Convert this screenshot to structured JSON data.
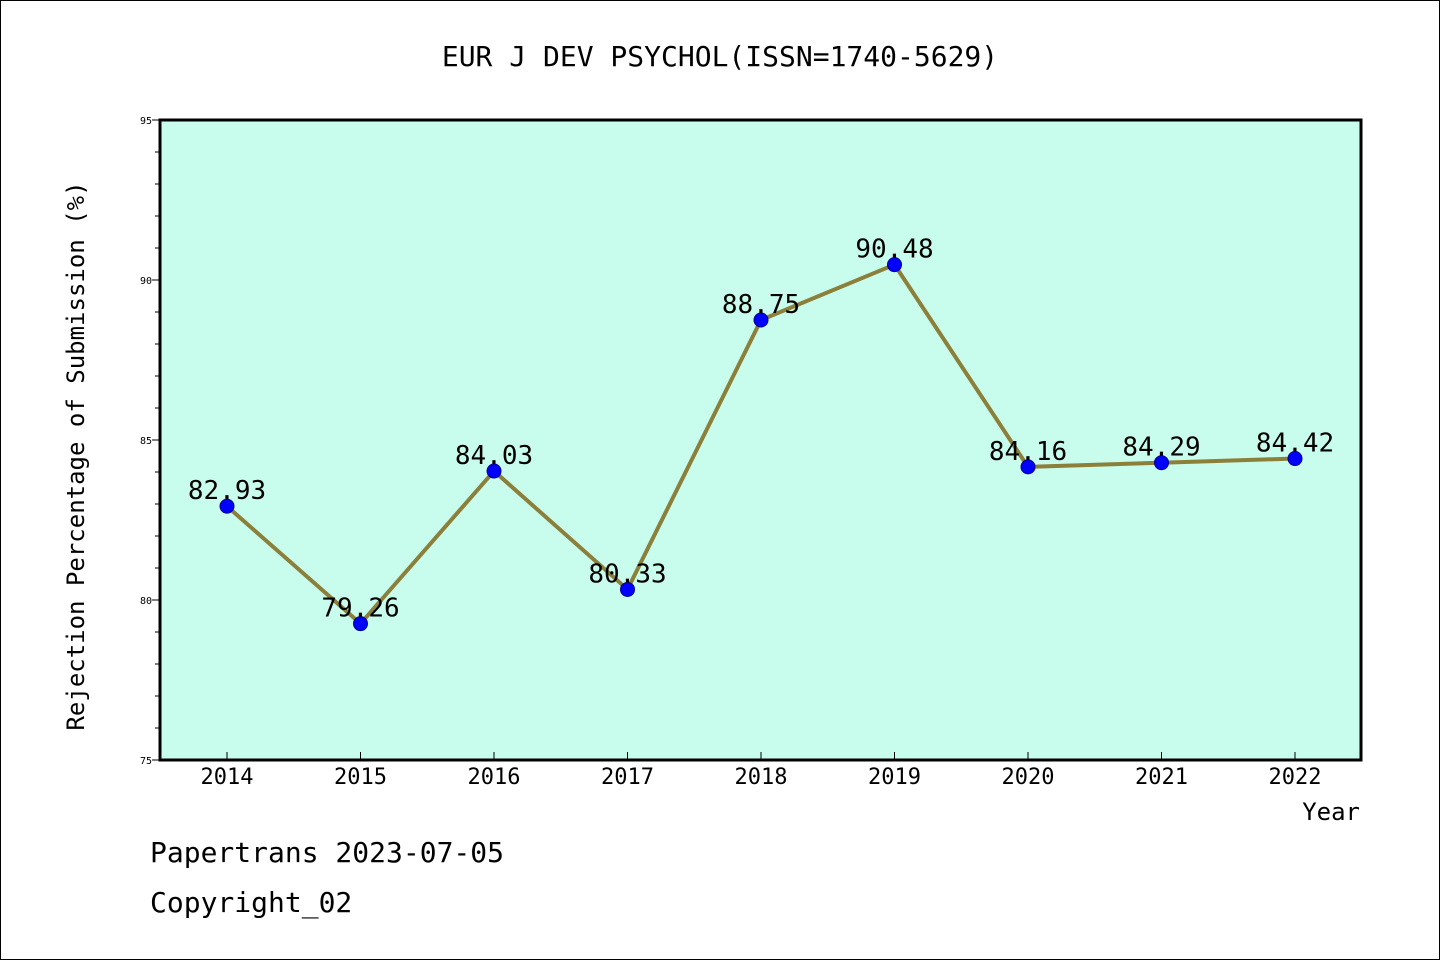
{
  "chart_data": {
    "type": "line",
    "title": "EUR J DEV PSYCHOL(ISSN=1740-5629)",
    "xlabel": "Year",
    "ylabel": "Rejection Percentage of Submission (%)",
    "categories": [
      "2014",
      "2015",
      "2016",
      "2017",
      "2018",
      "2019",
      "2020",
      "2021",
      "2022"
    ],
    "values": [
      82.93,
      79.26,
      84.03,
      80.33,
      88.75,
      90.48,
      84.16,
      84.29,
      84.42
    ],
    "data_labels": [
      "82.93",
      "79.26",
      "84.03",
      "80.33",
      "88.75",
      "90.48",
      "84.16",
      "84.29",
      "84.42"
    ],
    "ylim": [
      75,
      95
    ],
    "yticks": [
      75,
      80,
      85,
      90,
      95
    ],
    "grid": false,
    "colors": {
      "plot_background": "#c8fcec",
      "line": "#8b7f3a",
      "marker": "#0000ff"
    }
  },
  "footer": {
    "line1": "Papertrans 2023-07-05",
    "line2": "Copyright_02"
  }
}
